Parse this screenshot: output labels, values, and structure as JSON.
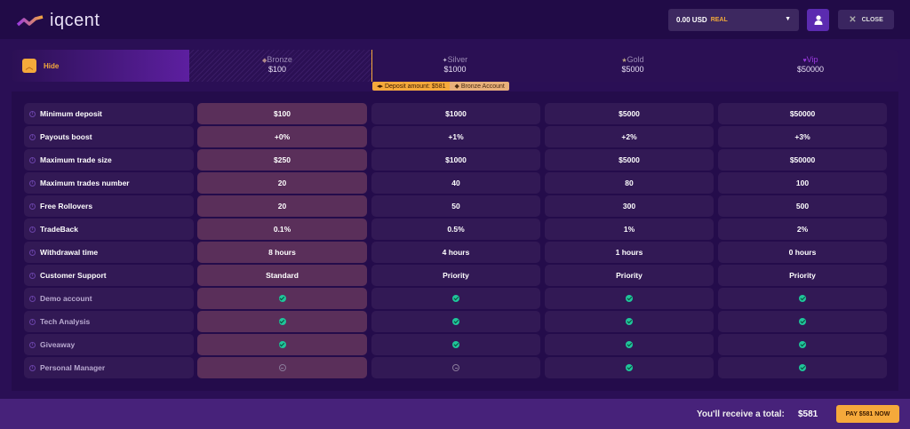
{
  "header": {
    "logo_text": "iqcent",
    "balance": "0.00 USD",
    "account_type": "REAL",
    "close_label": "CLOSE"
  },
  "tierbar": {
    "hide_label": "Hide",
    "tiers": [
      {
        "name": "Bronze",
        "price": "$100",
        "icon": "diamond-icon",
        "color": "#b08a8a"
      },
      {
        "name": "Silver",
        "price": "$1000",
        "icon": "sparkle-icon",
        "color": "#c0b8d0"
      },
      {
        "name": "Gold",
        "price": "$5000",
        "icon": "star-icon",
        "color": "#b8a080"
      },
      {
        "name": "Vip",
        "price": "$50000",
        "icon": "gem-icon",
        "color": "#9b3ae0"
      }
    ],
    "deposit_amount": "Deposit amount: $581",
    "current_account": "Bronze Account"
  },
  "rows": [
    {
      "label": "Minimum deposit",
      "values": [
        "$100",
        "$1000",
        "$5000",
        "$50000"
      ]
    },
    {
      "label": "Payouts boost",
      "values": [
        "+0%",
        "+1%",
        "+2%",
        "+3%"
      ]
    },
    {
      "label": "Maximum trade size",
      "values": [
        "$250",
        "$1000",
        "$5000",
        "$50000"
      ]
    },
    {
      "label": "Maximum trades number",
      "values": [
        "20",
        "40",
        "80",
        "100"
      ]
    },
    {
      "label": "Free Rollovers",
      "values": [
        "20",
        "50",
        "300",
        "500"
      ]
    },
    {
      "label": "TradeBack",
      "values": [
        "0.1%",
        "0.5%",
        "1%",
        "2%"
      ]
    },
    {
      "label": "Withdrawal time",
      "values": [
        "8 hours",
        "4 hours",
        "1 hours",
        "0 hours"
      ]
    },
    {
      "label": "Customer Support",
      "values": [
        "Standard",
        "Priority",
        "Priority",
        "Priority"
      ]
    },
    {
      "label": "Demo account",
      "values": [
        "check",
        "check",
        "check",
        "check"
      ]
    },
    {
      "label": "Tech Analysis",
      "values": [
        "check",
        "check",
        "check",
        "check"
      ]
    },
    {
      "label": "Giveaway",
      "values": [
        "check",
        "check",
        "check",
        "check"
      ]
    },
    {
      "label": "Personal Manager",
      "values": [
        "minus",
        "minus",
        "check",
        "check"
      ]
    }
  ],
  "footer": {
    "total_label": "You'll receive a total:",
    "total_value": "$581",
    "pay_label": "PAY $581 NOW"
  }
}
